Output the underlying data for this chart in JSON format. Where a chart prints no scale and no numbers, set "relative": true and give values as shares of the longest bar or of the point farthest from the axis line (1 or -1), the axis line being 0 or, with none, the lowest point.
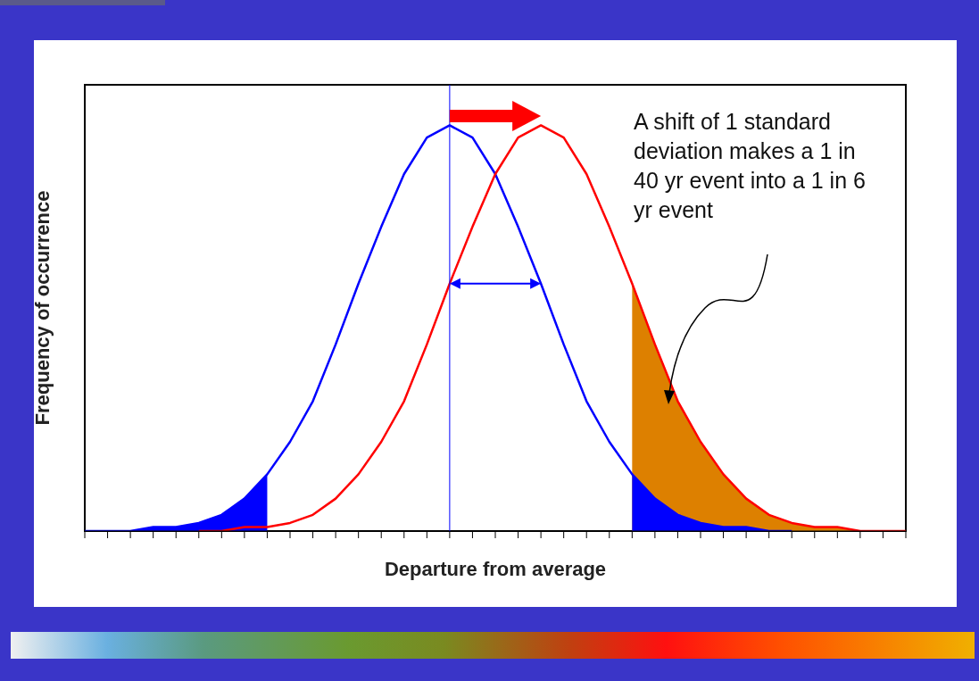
{
  "chart_data": {
    "type": "line",
    "relative": true,
    "xlabel": "Departure from average",
    "ylabel": "Frequency of occurrence",
    "categories": [
      null,
      null,
      null,
      null,
      null,
      null,
      null,
      null,
      null,
      null,
      null,
      null,
      null,
      null,
      null,
      null,
      null,
      null,
      null,
      null,
      null,
      null,
      null,
      null,
      null,
      null,
      null,
      null,
      null,
      null,
      null,
      null,
      null,
      null,
      null,
      null,
      null
    ],
    "series": [
      {
        "type": "area",
        "color": "#dd8000",
        "values": [
          null,
          null,
          null,
          null,
          null,
          null,
          null,
          null,
          null,
          null,
          null,
          null,
          null,
          null,
          null,
          null,
          null,
          null,
          null,
          null,
          null,
          null,
          null,
          null,
          0.61,
          0.46,
          0.32,
          0.22,
          0.14,
          0.08,
          0.04,
          0.02,
          0.01,
          0.01,
          0,
          0,
          0
        ]
      },
      {
        "type": "area",
        "color": "#0000ff",
        "values": [
          0,
          0,
          0,
          0.01,
          0.01,
          0.02,
          0.04,
          0.08,
          0.14,
          null,
          null,
          null,
          null,
          null,
          null,
          null,
          null,
          null,
          null,
          null,
          null,
          null,
          null,
          null,
          0.14,
          0.08,
          0.04,
          0.02,
          0.01,
          0.01,
          0,
          0,
          0,
          0,
          0,
          0,
          0
        ]
      },
      {
        "color": "#0000ff",
        "values": [
          0,
          0,
          0,
          0.01,
          0.01,
          0.02,
          0.04,
          0.08,
          0.14,
          0.22,
          0.32,
          0.46,
          0.61,
          0.75,
          0.88,
          0.97,
          1,
          0.97,
          0.88,
          0.75,
          0.61,
          0.46,
          0.32,
          0.22,
          0.14,
          0.08,
          0.04,
          0.02,
          0.01,
          0.01,
          0,
          0,
          null,
          null,
          null,
          null,
          null
        ]
      },
      {
        "color": "#ff0000",
        "values": [
          null,
          null,
          null,
          null,
          null,
          0,
          0,
          0.01,
          0.01,
          0.02,
          0.04,
          0.08,
          0.14,
          0.22,
          0.32,
          0.46,
          0.61,
          0.75,
          0.88,
          0.97,
          1,
          0.97,
          0.88,
          0.75,
          0.61,
          0.46,
          0.32,
          0.22,
          0.14,
          0.08,
          0.04,
          0.02,
          0.01,
          0.01,
          0,
          0,
          0
        ]
      }
    ],
    "annotations": [
      "A shift of 1 standard deviation makes a 1 in 40 yr event into a 1 in 6 yr event"
    ],
    "grid": false,
    "marker": "none",
    "line_style": "solid"
  }
}
